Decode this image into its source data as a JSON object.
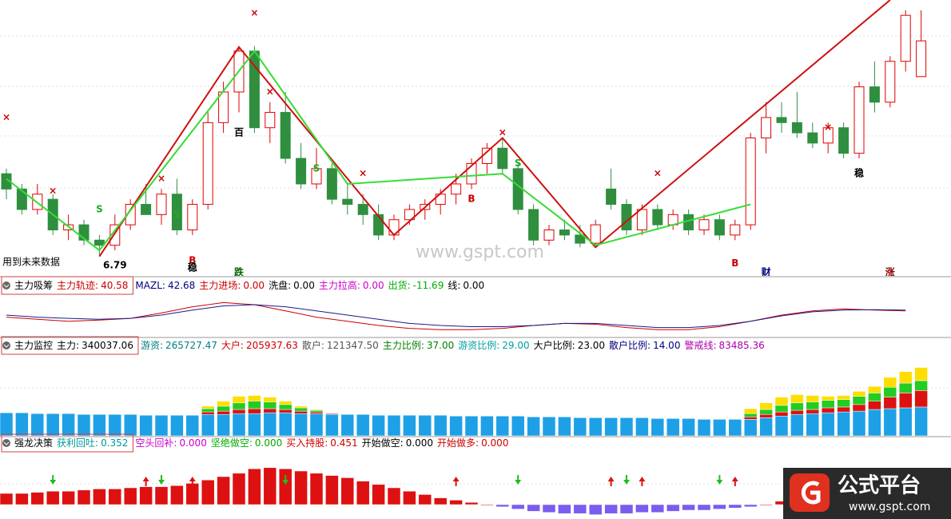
{
  "chart_data": [
    {
      "type": "candlestick",
      "note": "用到未来数据",
      "ylim": [
        6.6,
        9.3
      ],
      "up_color": "#e00000",
      "down_color": "#2f8f3f",
      "open": [
        7.6,
        7.45,
        7.25,
        7.35,
        7.05,
        7.1,
        6.95,
        6.9,
        7.1,
        7.3,
        7.2,
        7.4,
        7.05,
        7.3,
        8.1,
        8.4,
        8.8,
        8.05,
        8.2,
        7.75,
        7.5,
        7.65,
        7.35,
        7.3,
        7.2,
        7.0,
        7.15,
        7.25,
        7.3,
        7.4,
        7.5,
        7.7,
        7.85,
        7.65,
        7.25,
        6.95,
        7.05,
        7.0,
        6.92,
        7.45,
        7.3,
        7.05,
        7.25,
        7.1,
        7.2,
        7.05,
        7.15,
        7.0,
        7.1,
        7.95,
        8.15,
        8.1,
        8.0,
        7.9,
        8.05,
        7.8,
        8.45,
        8.3,
        8.7,
        8.55
      ],
      "high": [
        7.65,
        7.5,
        7.5,
        7.4,
        7.2,
        7.15,
        7.0,
        7.2,
        7.35,
        7.5,
        7.45,
        7.55,
        7.35,
        8.2,
        8.5,
        8.84,
        8.85,
        8.3,
        8.4,
        7.9,
        7.85,
        7.7,
        7.5,
        7.4,
        7.3,
        7.2,
        7.3,
        7.35,
        7.45,
        7.6,
        7.75,
        7.9,
        7.95,
        7.7,
        7.3,
        7.1,
        7.15,
        7.1,
        7.15,
        7.65,
        7.35,
        7.3,
        7.3,
        7.25,
        7.25,
        7.2,
        7.2,
        7.15,
        8.0,
        8.3,
        8.3,
        8.4,
        8.1,
        8.1,
        8.1,
        8.5,
        8.7,
        8.75,
        9.2,
        9.2
      ],
      "low": [
        7.35,
        7.2,
        7.2,
        7.0,
        6.95,
        6.9,
        6.79,
        6.85,
        7.05,
        7.2,
        7.1,
        7.0,
        7.0,
        7.25,
        8.0,
        8.2,
        8.0,
        7.9,
        7.7,
        7.45,
        7.45,
        7.3,
        7.2,
        7.1,
        6.95,
        6.95,
        7.1,
        7.15,
        7.2,
        7.3,
        7.45,
        7.6,
        7.6,
        7.2,
        6.9,
        6.9,
        6.95,
        6.88,
        6.88,
        7.25,
        7.0,
        7.0,
        7.05,
        7.05,
        7.0,
        7.0,
        6.95,
        6.95,
        7.05,
        7.8,
        8.0,
        7.95,
        7.85,
        7.8,
        7.75,
        7.75,
        8.2,
        8.25,
        8.6,
        8.55
      ],
      "close": [
        7.45,
        7.25,
        7.4,
        7.05,
        7.1,
        6.95,
        6.9,
        7.1,
        7.3,
        7.2,
        7.4,
        7.05,
        7.3,
        8.1,
        8.4,
        8.8,
        8.05,
        8.2,
        7.75,
        7.5,
        7.65,
        7.35,
        7.3,
        7.2,
        7.0,
        7.15,
        7.25,
        7.3,
        7.4,
        7.5,
        7.7,
        7.85,
        7.65,
        7.25,
        6.95,
        7.05,
        7.0,
        6.92,
        7.1,
        7.3,
        7.05,
        7.25,
        7.1,
        7.2,
        7.05,
        7.15,
        7.0,
        7.1,
        7.95,
        8.15,
        8.1,
        8.0,
        7.9,
        8.05,
        7.8,
        8.45,
        8.3,
        8.7,
        9.15,
        8.9
      ],
      "lines": [
        {
          "color": "#d01010",
          "x": [
            6,
            15,
            25,
            32,
            38,
            57
          ],
          "values": [
            6.79,
            8.84,
            7.0,
            7.95,
            6.88,
            9.3
          ]
        },
        {
          "color": "#33dd33",
          "x": [
            0,
            6,
            16,
            22,
            32,
            38,
            48
          ],
          "values": [
            7.55,
            6.85,
            8.8,
            7.5,
            7.6,
            6.9,
            7.3
          ]
        }
      ],
      "annotations": [
        {
          "text": "×",
          "i": 0,
          "v": 8.15,
          "color": "#cc0000"
        },
        {
          "text": "×",
          "i": 3,
          "v": 7.43,
          "color": "#cc0000"
        },
        {
          "text": "×",
          "i": 10,
          "v": 7.55,
          "color": "#cc0000"
        },
        {
          "text": "×",
          "i": 16,
          "v": 9.17,
          "color": "#cc0000"
        },
        {
          "text": "×",
          "i": 17,
          "v": 8.4,
          "color": "#cc0000"
        },
        {
          "text": "×",
          "i": 23,
          "v": 7.6,
          "color": "#cc0000"
        },
        {
          "text": "×",
          "i": 32,
          "v": 8.0,
          "color": "#cc0000"
        },
        {
          "text": "×",
          "i": 42,
          "v": 7.6,
          "color": "#cc0000"
        },
        {
          "text": "×",
          "i": 53,
          "v": 8.05,
          "color": "#cc0000"
        },
        {
          "text": "B",
          "i": 12,
          "v": 6.75,
          "color": "#cc0000"
        },
        {
          "text": "B",
          "i": 30,
          "v": 7.35,
          "color": "#cc0000"
        },
        {
          "text": "B",
          "i": 47,
          "v": 6.72,
          "color": "#cc0000"
        },
        {
          "text": "S",
          "i": 6,
          "v": 7.25,
          "color": "#22aa22"
        },
        {
          "text": "S",
          "i": 11,
          "v": 7.2,
          "color": "#22aa22"
        },
        {
          "text": "S",
          "i": 20,
          "v": 7.65,
          "color": "#22aa22"
        },
        {
          "text": "S",
          "i": 33,
          "v": 7.7,
          "color": "#22aa22"
        },
        {
          "text": "稳",
          "i": 12,
          "v": 6.68,
          "color": "#000000"
        },
        {
          "text": "稳",
          "i": 55,
          "v": 7.6,
          "color": "#000000"
        },
        {
          "text": "跌",
          "i": 15,
          "v": 6.63,
          "color": "#006600"
        },
        {
          "text": "财",
          "i": 49,
          "v": 6.63,
          "color": "#000080"
        },
        {
          "text": "涨",
          "i": 57,
          "v": 6.63,
          "color": "#880000"
        },
        {
          "text": "百",
          "i": 15,
          "v": 8.0,
          "color": "#000000"
        },
        {
          "text": "6.79",
          "i": 7,
          "v": 6.7,
          "color": "#000000"
        }
      ]
    },
    {
      "type": "line",
      "title": "主力吸筹",
      "ylim": [
        0,
        100
      ],
      "items": [
        {
          "name": "主力轨迹:",
          "value": 40.58,
          "color": "#cc0000"
        },
        {
          "name": "MAZL:",
          "value": 42.68,
          "color": "#000080"
        },
        {
          "name": "主力进场:",
          "value": 0,
          "value_label": "0.00",
          "color": "#cc0000"
        },
        {
          "name": "洗盘:",
          "value": 0,
          "value_label": "0.00",
          "color": "#000000"
        },
        {
          "name": "主力拉高:",
          "value": 0,
          "value_label": "0.00",
          "color": "#cc00cc"
        },
        {
          "name": "出货:",
          "value": -11.69,
          "color": "#00aa00"
        },
        {
          "name": "线:",
          "value": 0,
          "value_label": "0.00",
          "color": "#000000"
        }
      ],
      "x": [
        0,
        2,
        4,
        6,
        8,
        10,
        12,
        14,
        16,
        18,
        20,
        22,
        24,
        26,
        28,
        30,
        32,
        34,
        36,
        38,
        40,
        42,
        44,
        46,
        48,
        50,
        52,
        54,
        56,
        58
      ],
      "series": [
        {
          "color": "#cc0000",
          "values": [
            45,
            40,
            35,
            38,
            42,
            55,
            70,
            80,
            75,
            60,
            45,
            35,
            25,
            18,
            15,
            15,
            18,
            25,
            30,
            28,
            20,
            15,
            15,
            22,
            35,
            50,
            60,
            65,
            62,
            60
          ]
        },
        {
          "color": "#1a1a8c",
          "values": [
            50,
            45,
            42,
            40,
            42,
            50,
            62,
            72,
            75,
            70,
            60,
            50,
            40,
            30,
            25,
            22,
            22,
            25,
            30,
            30,
            25,
            20,
            20,
            25,
            35,
            48,
            58,
            62,
            63,
            62
          ]
        }
      ]
    },
    {
      "type": "stacked_bar",
      "title": "主力监控",
      "ylim": [
        0,
        100
      ],
      "items": [
        {
          "name": "主力:",
          "value": 340037.06,
          "color": "#000000"
        },
        {
          "name": "游资:",
          "value": 265727.47,
          "color": "#008080"
        },
        {
          "name": "大户:",
          "value": 205937.63,
          "color": "#cc0000"
        },
        {
          "name": "散户:",
          "value": 121347.5,
          "value_label": "121347.50",
          "color": "#555555"
        },
        {
          "name": "主力比例:",
          "value": 37,
          "value_label": "37.00",
          "color": "#008000"
        },
        {
          "name": "游资比例:",
          "value": 29,
          "value_label": "29.00",
          "color": "#00a0a0"
        },
        {
          "name": "大户比例:",
          "value": 23,
          "value_label": "23.00",
          "color": "#000000"
        },
        {
          "name": "散户比例:",
          "value": 14,
          "value_label": "14.00",
          "color": "#000080"
        },
        {
          "name": "警戒线:",
          "value": 83485.36,
          "color": "#aa00aa"
        }
      ],
      "series": [
        {
          "color": "#1ea0e6",
          "values": [
            28,
            28,
            27,
            27,
            27,
            26,
            26,
            26,
            26,
            25,
            25,
            25,
            25,
            26,
            26,
            27,
            27,
            28,
            28,
            27,
            27,
            26,
            26,
            26,
            25,
            25,
            25,
            25,
            25,
            24,
            24,
            24,
            24,
            24,
            23,
            23,
            23,
            22,
            22,
            22,
            22,
            22,
            21,
            21,
            21,
            20,
            20,
            20,
            20,
            22,
            24,
            26,
            27,
            28,
            29,
            30,
            32,
            33,
            34,
            35
          ]
        },
        {
          "color": "#dd1111",
          "values": [
            0,
            0,
            0,
            0,
            0,
            0,
            0,
            0,
            0,
            0,
            0,
            0,
            0,
            3,
            4,
            5,
            6,
            5,
            4,
            3,
            2,
            1,
            0,
            0,
            0,
            0,
            0,
            0,
            0,
            0,
            0,
            0,
            0,
            0,
            0,
            0,
            0,
            0,
            0,
            0,
            0,
            0,
            0,
            0,
            0,
            0,
            0,
            0,
            3,
            4,
            5,
            5,
            5,
            6,
            6,
            8,
            10,
            14,
            18,
            20
          ]
        },
        {
          "color": "#22cc22",
          "values": [
            0,
            0,
            0,
            0,
            0,
            0,
            0,
            0,
            0,
            0,
            0,
            0,
            0,
            4,
            6,
            8,
            9,
            8,
            6,
            4,
            2,
            0,
            0,
            0,
            0,
            0,
            0,
            0,
            0,
            0,
            0,
            0,
            0,
            0,
            0,
            0,
            0,
            0,
            0,
            0,
            0,
            0,
            0,
            0,
            0,
            0,
            0,
            0,
            4,
            6,
            8,
            9,
            9,
            9,
            9,
            10,
            10,
            12,
            12,
            12
          ]
        },
        {
          "color": "#ffdd00",
          "values": [
            0,
            0,
            0,
            0,
            0,
            0,
            0,
            0,
            0,
            0,
            0,
            0,
            0,
            3,
            6,
            8,
            7,
            6,
            4,
            2,
            1,
            0,
            0,
            0,
            0,
            0,
            0,
            0,
            0,
            0,
            0,
            0,
            0,
            0,
            0,
            0,
            0,
            0,
            0,
            0,
            0,
            0,
            0,
            0,
            0,
            0,
            0,
            0,
            6,
            8,
            10,
            10,
            8,
            5,
            5,
            6,
            8,
            12,
            14,
            16
          ]
        }
      ]
    },
    {
      "type": "bar",
      "title": "强龙决策",
      "ylim": [
        -10,
        45
      ],
      "color": "#dd1111",
      "negative_color": "#7a5cf0",
      "items": [
        {
          "name": "获利回吐:",
          "value": 0.352,
          "color": "#009999"
        },
        {
          "name": "空头回补:",
          "value": 0,
          "value_label": "0.000",
          "color": "#cc00cc"
        },
        {
          "name": "坚绝做空:",
          "value": 0,
          "value_label": "0.000",
          "color": "#00aa00"
        },
        {
          "name": "买入持股:",
          "value": 0.451,
          "color": "#cc0000"
        },
        {
          "name": "开始做空:",
          "value": 0,
          "value_label": "0.000",
          "color": "#000000"
        },
        {
          "name": "开始做多:",
          "value": 0,
          "value_label": "0.000",
          "color": "#cc0000"
        }
      ],
      "values": [
        10,
        10,
        11,
        12,
        12,
        13,
        14,
        14,
        15,
        16,
        16,
        17,
        19,
        22,
        25,
        28,
        32,
        33,
        32,
        30,
        28,
        26,
        24,
        21,
        18,
        15,
        12,
        9,
        6,
        4,
        2,
        0,
        -2,
        -4,
        -6,
        -7,
        -8,
        -8,
        -9,
        -8,
        -8,
        -7,
        -7,
        -6,
        -5,
        -5,
        -4,
        -3,
        -2,
        0,
        3,
        6,
        9,
        12,
        15,
        18,
        21,
        24,
        28,
        30
      ],
      "buy_x": [
        9,
        12,
        29,
        39,
        41,
        47
      ],
      "sell_x": [
        3,
        10,
        18,
        33,
        40,
        46
      ]
    }
  ],
  "watermark": "www.gspt.com",
  "logo": {
    "title": "公式平台",
    "url": "www.gspt.com"
  }
}
